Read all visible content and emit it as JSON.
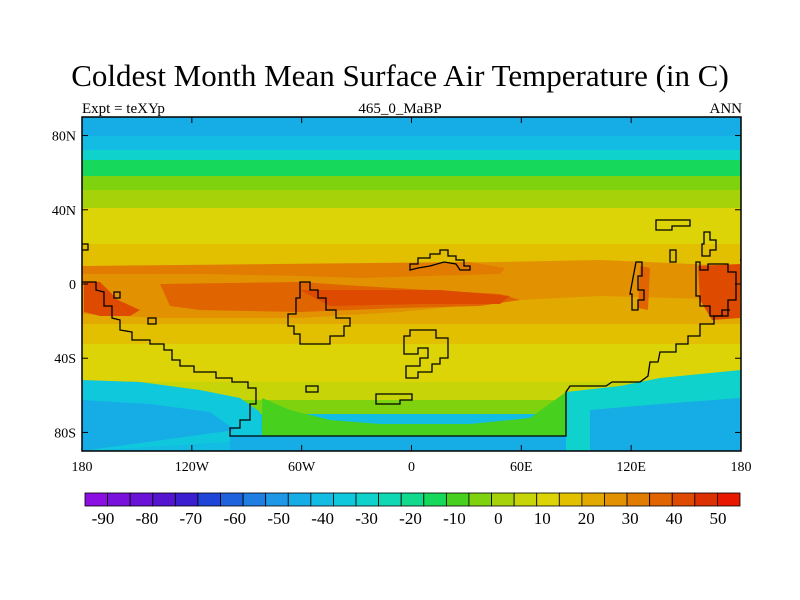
{
  "title": "Coldest Month Mean Surface Air Temperature (in C)",
  "left_label": "Expt = teXYp",
  "center_label": "465_0_MaBP",
  "right_label": "ANN",
  "lat_ticks": [
    {
      "label": "80N",
      "lat": 80
    },
    {
      "label": "40N",
      "lat": 40
    },
    {
      "label": "0",
      "lat": 0
    },
    {
      "label": "40S",
      "lat": -40
    },
    {
      "label": "80S",
      "lat": -80
    }
  ],
  "lon_ticks": [
    {
      "label": "180",
      "lon": -180
    },
    {
      "label": "120W",
      "lon": -120
    },
    {
      "label": "60W",
      "lon": -60
    },
    {
      "label": "0",
      "lon": 0
    },
    {
      "label": "60E",
      "lon": 60
    },
    {
      "label": "120E",
      "lon": 120
    },
    {
      "label": "180",
      "lon": 180
    }
  ],
  "colorbar": {
    "labels": [
      "-90",
      "-80",
      "-70",
      "-60",
      "-50",
      "-40",
      "-30",
      "-20",
      "-10",
      "0",
      "10",
      "20",
      "30",
      "40",
      "50"
    ],
    "colors": [
      "#8a0fe0",
      "#7a10dc",
      "#6a12d8",
      "#5514d0",
      "#3a1ed0",
      "#1e45d8",
      "#1e62de",
      "#1e7ee2",
      "#1e98e6",
      "#16ace6",
      "#12bce2",
      "#10c8dc",
      "#10d2cc",
      "#10d8b4",
      "#12da8c",
      "#16d85a",
      "#48d01e",
      "#7ed20e",
      "#a6d20a",
      "#c6d408",
      "#dcd406",
      "#e2c000",
      "#e2aa00",
      "#e29200",
      "#e27c00",
      "#e06400",
      "#de4a00",
      "#dc3000",
      "#e81800"
    ]
  },
  "colors": {
    "continent_outline": "#000000"
  }
}
